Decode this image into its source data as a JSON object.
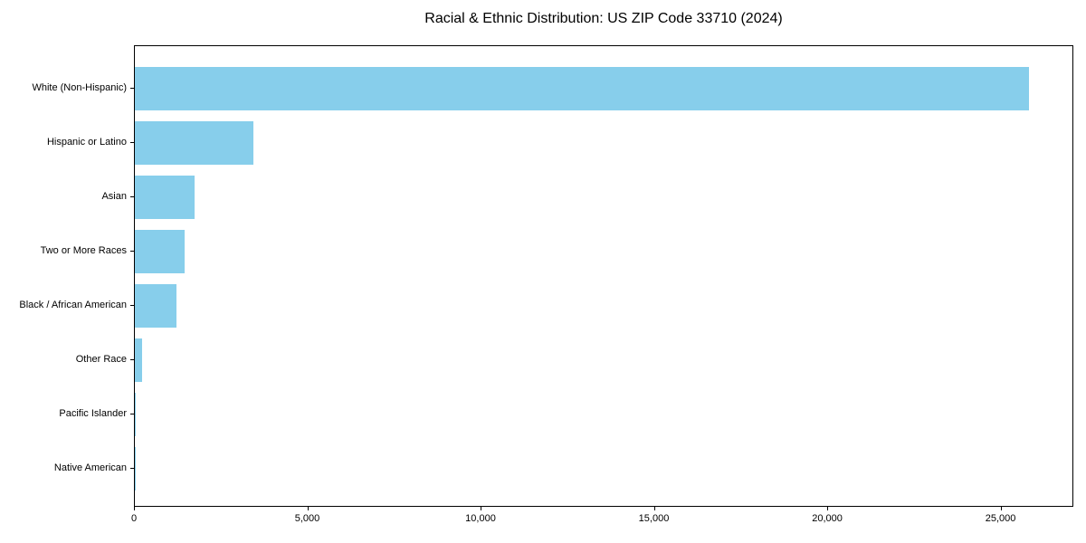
{
  "chart_data": {
    "type": "bar",
    "orientation": "horizontal",
    "title": "Racial & Ethnic Distribution: US ZIP Code 33710 (2024)",
    "categories": [
      "White (Non-Hispanic)",
      "Hispanic or Latino",
      "Asian",
      "Two or More Races",
      "Black / African American",
      "Other Race",
      "Pacific Islander",
      "Native American"
    ],
    "values": [
      25800,
      3430,
      1730,
      1440,
      1200,
      210,
      35,
      10
    ],
    "xlabel": "",
    "ylabel": "",
    "xlim": [
      0,
      27100
    ],
    "xticks": [
      0,
      5000,
      10000,
      15000,
      20000,
      25000
    ],
    "xtick_labels": [
      "0",
      "5,000",
      "10,000",
      "15,000",
      "20,000",
      "25,000"
    ],
    "bar_color": "#87CEEB",
    "background": "#ffffff",
    "grid": false,
    "legend": null
  }
}
